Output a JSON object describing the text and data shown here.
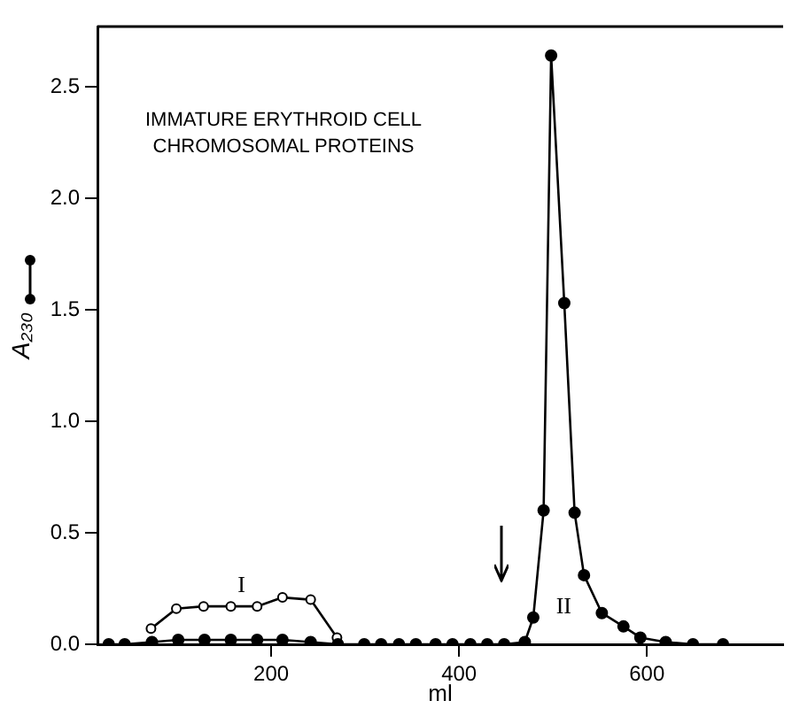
{
  "chart_data": {
    "type": "line",
    "title": "IMMATURE ERYTHROID CELL\nCHROMOSOMAL PROTEINS",
    "xlabel": "ml",
    "ylabel": "A₂₃₀",
    "xlim": [
      15,
      745
    ],
    "xticks": [
      200,
      400,
      600
    ],
    "ylim": [
      0,
      2.77
    ],
    "yticks": [
      {
        "value": 0,
        "label": "0.0"
      },
      {
        "value": 0.5,
        "label": "0.5"
      },
      {
        "value": 1,
        "label": "1.0"
      },
      {
        "value": 1.5,
        "label": "1.5"
      },
      {
        "value": 2,
        "label": "2.0"
      },
      {
        "value": 2.5,
        "label": "2.5"
      }
    ],
    "grid": false,
    "legend": false,
    "marker": "circle",
    "line_style": "solid",
    "series": [
      {
        "color": "#000000",
        "x": [
          27,
          44,
          73,
          101,
          129,
          157,
          185,
          212,
          242,
          271,
          299,
          317,
          336,
          354,
          375,
          393,
          412,
          430,
          448,
          470,
          479,
          490,
          498,
          512,
          523,
          533,
          552,
          575,
          593,
          620,
          649,
          681
        ],
        "values": [
          0,
          0,
          0.01,
          0.02,
          0.02,
          0.02,
          0.02,
          0.02,
          0.01,
          0,
          0,
          0,
          0,
          0,
          0,
          0,
          0,
          0,
          0,
          0.01,
          0.12,
          0.6,
          2.64,
          1.53,
          0.59,
          0.31,
          0.14,
          0.08,
          0.03,
          0.01,
          0,
          0
        ]
      },
      {
        "color": "#000000",
        "x": [
          72,
          99,
          128,
          157,
          185,
          212,
          242,
          270
        ],
        "values": [
          0.07,
          0.16,
          0.17,
          0.17,
          0.17,
          0.21,
          0.2,
          0.03
        ]
      }
    ],
    "annotations": [
      "I",
      "II"
    ]
  }
}
